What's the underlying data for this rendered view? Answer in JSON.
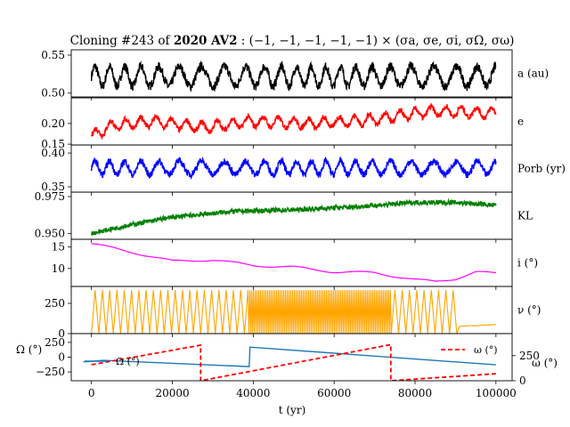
{
  "title": {
    "prefix": "Cloning #243 of ",
    "object": "2020 AV2",
    "suffix": " : (−1, −1, −1, −1, −1) × (σa, σe, σi, σΩ, σω)"
  },
  "xaxis": {
    "label": "t (yr)",
    "lim": [
      -5000,
      104000
    ],
    "ticks": [
      0,
      20000,
      40000,
      60000,
      80000,
      100000
    ],
    "tick_labels": [
      "0",
      "20000",
      "40000",
      "60000",
      "80000",
      "100000"
    ]
  },
  "chart_data": [
    {
      "type": "line",
      "id": "a",
      "label": "a (au)",
      "color": "#000000",
      "ylim": [
        0.495,
        0.557
      ],
      "yticks": [
        0.5,
        0.55
      ],
      "ytick_labels": [
        "0.50",
        "0.55"
      ],
      "series": [
        {
          "x": [
            0,
            100000
          ],
          "mean": 0.522,
          "osc_amp": 0.013,
          "noise": 0.006
        }
      ]
    },
    {
      "type": "line",
      "id": "e",
      "label": "e",
      "color": "#ff0000",
      "ylim": [
        0.148,
        0.262
      ],
      "yticks": [
        0.15,
        0.2
      ],
      "ytick_labels": [
        "0.15",
        "0.20"
      ],
      "series": [
        {
          "x": [
            0,
            5000,
            15000,
            28000,
            40000,
            55000,
            70000,
            85000,
            100000
          ],
          "y": [
            0.17,
            0.195,
            0.205,
            0.19,
            0.205,
            0.2,
            0.21,
            0.23,
            0.225
          ]
        }
      ]
    },
    {
      "type": "line",
      "id": "P",
      "label": "Porb (yr)",
      "color": "#0000ff",
      "ylim": [
        0.342,
        0.412
      ],
      "yticks": [
        0.35,
        0.4
      ],
      "ytick_labels": [
        "0.35",
        "0.40"
      ],
      "series": [
        {
          "x": [
            0,
            100000
          ],
          "mean": 0.378,
          "osc_amp": 0.01,
          "noise": 0.005
        }
      ]
    },
    {
      "type": "line",
      "id": "KL",
      "label": "KL",
      "color": "#008000",
      "ylim": [
        0.946,
        0.978
      ],
      "yticks": [
        0.95,
        0.975
      ],
      "ytick_labels": [
        "0.950",
        "0.975"
      ],
      "series": [
        {
          "x": [
            0,
            10000,
            20000,
            35000,
            50000,
            65000,
            80000,
            90000,
            100000
          ],
          "y": [
            0.95,
            0.956,
            0.961,
            0.965,
            0.966,
            0.968,
            0.971,
            0.971,
            0.969
          ]
        }
      ]
    },
    {
      "type": "line",
      "id": "i",
      "label": "i (°)",
      "color": "#ff00ff",
      "ylim": [
        5.8,
        16.8
      ],
      "yticks": [
        10,
        15
      ],
      "ytick_labels": [
        "10",
        "15"
      ],
      "series": [
        {
          "x": [
            0,
            10000,
            20000,
            30000,
            40000,
            50000,
            60000,
            70000,
            80000,
            85000,
            90000,
            95000,
            100000
          ],
          "y": [
            15.8,
            13.8,
            11.7,
            12.0,
            10.7,
            10.3,
            9.2,
            9.0,
            7.4,
            6.9,
            7.6,
            9.2,
            8.8
          ]
        }
      ]
    },
    {
      "type": "line",
      "id": "nu",
      "label": "ν (°)",
      "color": "#ffa500",
      "ylim": [
        0,
        390
      ],
      "yticks": [
        0,
        250
      ],
      "ytick_labels": [
        "0",
        "250"
      ],
      "series": [
        {
          "x": [
            0,
            91000
          ],
          "range": [
            0,
            360
          ],
          "tail_x": [
            91000,
            100000
          ],
          "tail_y": [
            60,
            75
          ]
        }
      ]
    },
    {
      "type": "line",
      "id": "nodes",
      "y1label": "Ω (°)",
      "y2label": "ω (°)",
      "y1lim": [
        -400,
        400
      ],
      "y1ticks": [
        -250,
        0,
        250
      ],
      "y1tick_labels": [
        "−250",
        "0",
        "250"
      ],
      "y2lim": [
        0,
        470
      ],
      "y2ticks": [
        0,
        250
      ],
      "y2tick_labels": [
        "0",
        "250"
      ],
      "series": [
        {
          "name": "Ω (°)",
          "axis": "left",
          "color": "#1f77b4",
          "x": [
            -2000,
            3000,
            39000,
            39200,
            100000
          ],
          "y": [
            -80,
            -55,
            -160,
            170,
            -130
          ]
        },
        {
          "name": "ω (°)",
          "axis": "right",
          "color": "#ff0000",
          "dash": true,
          "x": [
            0,
            27000,
            27001,
            74000,
            74001,
            100000
          ],
          "y": [
            160,
            355,
            0,
            360,
            0,
            70
          ]
        }
      ]
    }
  ]
}
